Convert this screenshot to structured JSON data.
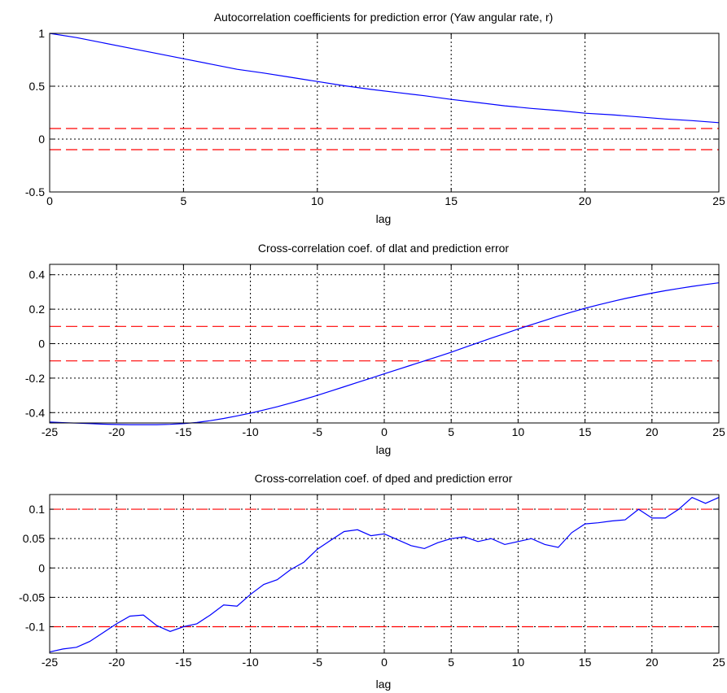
{
  "chart_data": [
    {
      "type": "line",
      "title": "Autocorrelation coefficients for prediction error (Yaw angular rate, r)",
      "xlabel": "lag",
      "ylabel": "",
      "xlim": [
        0,
        25
      ],
      "ylim": [
        -0.5,
        1
      ],
      "xticks": [
        0,
        5,
        10,
        15,
        20,
        25
      ],
      "xtick_labels": [
        "0",
        "5",
        "10",
        "15",
        "20",
        "25"
      ],
      "yticks": [
        -0.5,
        0,
        0.5,
        1
      ],
      "ytick_labels": [
        "-0.5",
        "0",
        "0.5",
        "1"
      ],
      "grid": true,
      "series": [
        {
          "color": "#0000ff",
          "style": "solid",
          "x": [
            0,
            1,
            2,
            3,
            4,
            5,
            6,
            7,
            8,
            9,
            10,
            11,
            12,
            13,
            14,
            15,
            16,
            17,
            18,
            19,
            20,
            21,
            22,
            23,
            24,
            25
          ],
          "y": [
            1.0,
            0.96,
            0.91,
            0.86,
            0.81,
            0.76,
            0.71,
            0.66,
            0.625,
            0.585,
            0.545,
            0.505,
            0.47,
            0.44,
            0.41,
            0.375,
            0.345,
            0.315,
            0.29,
            0.27,
            0.245,
            0.23,
            0.21,
            0.19,
            0.175,
            0.155
          ]
        }
      ],
      "reference_lines": [
        {
          "y": 0.1,
          "color": "#ff0000",
          "style": "dashed"
        },
        {
          "y": -0.1,
          "color": "#ff0000",
          "style": "dashed"
        }
      ]
    },
    {
      "type": "line",
      "title": "Cross-correlation coef. of dlat and prediction error",
      "xlabel": "lag",
      "ylabel": "",
      "xlim": [
        -25,
        25
      ],
      "ylim": [
        -0.46,
        0.46
      ],
      "xticks": [
        -25,
        -20,
        -15,
        -10,
        -5,
        0,
        5,
        10,
        15,
        20,
        25
      ],
      "xtick_labels": [
        "-25",
        "-20",
        "-15",
        "-10",
        "-5",
        "0",
        "5",
        "10",
        "15",
        "20",
        "25"
      ],
      "yticks": [
        -0.4,
        -0.2,
        0,
        0.2,
        0.4
      ],
      "ytick_labels": [
        "-0.4",
        "-0.2",
        "0",
        "0.2",
        "0.4"
      ],
      "grid": true,
      "series": [
        {
          "color": "#0000ff",
          "style": "solid",
          "x": [
            -25,
            -24,
            -23,
            -22,
            -21,
            -20,
            -19,
            -18,
            -17,
            -16,
            -15,
            -14,
            -13,
            -12,
            -11,
            -10,
            -9,
            -8,
            -7,
            -6,
            -5,
            -4,
            -3,
            -2,
            -1,
            0,
            1,
            2,
            3,
            4,
            5,
            6,
            7,
            8,
            9,
            10,
            11,
            12,
            13,
            14,
            15,
            16,
            17,
            18,
            19,
            20,
            21,
            22,
            23,
            24,
            25
          ],
          "y": [
            -0.455,
            -0.458,
            -0.461,
            -0.464,
            -0.467,
            -0.469,
            -0.47,
            -0.47,
            -0.47,
            -0.468,
            -0.464,
            -0.457,
            -0.447,
            -0.434,
            -0.419,
            -0.403,
            -0.385,
            -0.366,
            -0.345,
            -0.323,
            -0.3,
            -0.275,
            -0.25,
            -0.225,
            -0.2,
            -0.175,
            -0.15,
            -0.125,
            -0.1,
            -0.075,
            -0.05,
            -0.022,
            0.005,
            0.032,
            0.058,
            0.085,
            0.11,
            0.135,
            0.16,
            0.183,
            0.205,
            0.225,
            0.244,
            0.262,
            0.278,
            0.293,
            0.307,
            0.32,
            0.332,
            0.343,
            0.353
          ]
        }
      ],
      "reference_lines": [
        {
          "y": 0.1,
          "color": "#ff0000",
          "style": "dashed"
        },
        {
          "y": -0.1,
          "color": "#ff0000",
          "style": "dashed"
        }
      ]
    },
    {
      "type": "line",
      "title": "Cross-correlation coef. of dped and prediction error",
      "xlabel": "lag",
      "ylabel": "",
      "xlim": [
        -25,
        25
      ],
      "ylim": [
        -0.145,
        0.125
      ],
      "xticks": [
        -25,
        -20,
        -15,
        -10,
        -5,
        0,
        5,
        10,
        15,
        20,
        25
      ],
      "xtick_labels": [
        "-25",
        "-20",
        "-15",
        "-10",
        "-5",
        "0",
        "5",
        "10",
        "15",
        "20",
        "25"
      ],
      "yticks": [
        -0.1,
        -0.05,
        0,
        0.05,
        0.1
      ],
      "ytick_labels": [
        "-0.1",
        "-0.05",
        "0",
        "0.05",
        "0.1"
      ],
      "grid": true,
      "series": [
        {
          "color": "#0000ff",
          "style": "solid",
          "x": [
            -25,
            -24,
            -23,
            -22,
            -21,
            -20,
            -19,
            -18,
            -17,
            -16,
            -15,
            -14,
            -13,
            -12,
            -11,
            -10,
            -9,
            -8,
            -7,
            -6,
            -5,
            -4,
            -3,
            -2,
            -1,
            0,
            1,
            2,
            3,
            4,
            5,
            6,
            7,
            8,
            9,
            10,
            11,
            12,
            13,
            14,
            15,
            16,
            17,
            18,
            19,
            20,
            21,
            22,
            23,
            24,
            25
          ],
          "y": [
            -0.143,
            -0.138,
            -0.135,
            -0.125,
            -0.11,
            -0.095,
            -0.082,
            -0.08,
            -0.098,
            -0.108,
            -0.1,
            -0.095,
            -0.08,
            -0.063,
            -0.065,
            -0.045,
            -0.028,
            -0.02,
            -0.003,
            0.01,
            0.032,
            0.047,
            0.062,
            0.065,
            0.055,
            0.058,
            0.048,
            0.038,
            0.033,
            0.043,
            0.05,
            0.053,
            0.045,
            0.05,
            0.04,
            0.045,
            0.05,
            0.04,
            0.035,
            0.06,
            0.075,
            0.077,
            0.08,
            0.082,
            0.1,
            0.085,
            0.085,
            0.1,
            0.12,
            0.11,
            0.12
          ]
        }
      ],
      "reference_lines": [
        {
          "y": 0.1,
          "color": "#ff0000",
          "style": "dashed"
        },
        {
          "y": -0.1,
          "color": "#ff0000",
          "style": "dashed"
        }
      ]
    }
  ]
}
